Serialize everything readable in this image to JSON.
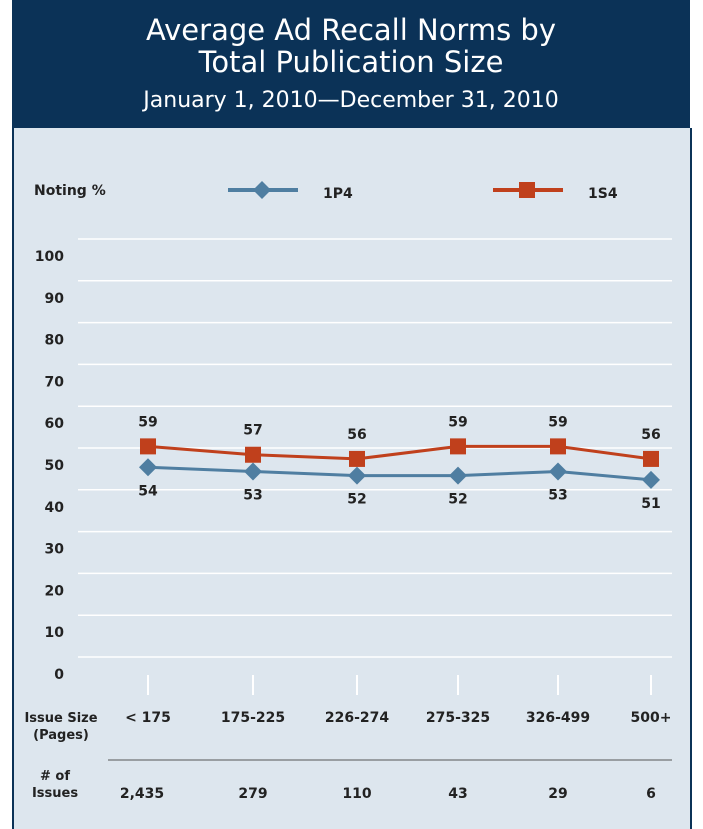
{
  "chart_data": {
    "type": "line",
    "title": "Average Ad Recall Norms by Total Publication Size",
    "subtitle": "January 1, 2010—December 31, 2010",
    "y_label": "Noting %",
    "x_label": "Issue Size (Pages)",
    "categories": [
      "< 175",
      "175-225",
      "226-274",
      "275-325",
      "326-499",
      "500+"
    ],
    "series": [
      {
        "name": "1P4",
        "color": "#4f7ea1",
        "marker": "diamond",
        "label_position": "below",
        "values": [
          54,
          53,
          52,
          52,
          53,
          51
        ]
      },
      {
        "name": "1S4",
        "color": "#c0401c",
        "marker": "square",
        "label_position": "above",
        "values": [
          59,
          57,
          56,
          59,
          59,
          56
        ]
      }
    ],
    "ylim": [
      0,
      100
    ],
    "yticks": [
      0,
      10,
      20,
      30,
      40,
      50,
      60,
      70,
      80,
      90,
      100
    ],
    "grid": true,
    "issues_label": "# of Issues",
    "issue_counts": [
      "2,435",
      "279",
      "110",
      "43",
      "29",
      "6"
    ]
  }
}
